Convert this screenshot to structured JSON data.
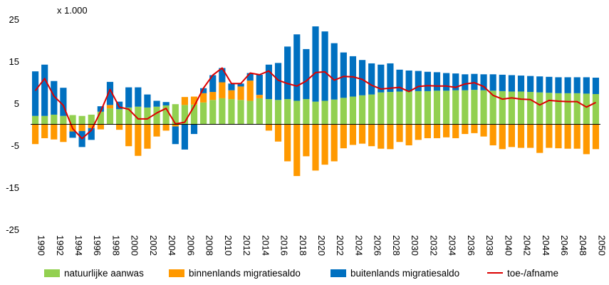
{
  "chart_data": {
    "type": "bar",
    "stacked": true,
    "unit_label": "x 1.000",
    "ylim": [
      -25,
      25
    ],
    "y_ticks": [
      "25",
      "15",
      "5",
      "-5",
      "-15",
      "-25"
    ],
    "y_tick_values": [
      25,
      15,
      5,
      -5,
      -15,
      -25
    ],
    "x_tick_labels": [
      "1990",
      "1992",
      "1994",
      "1996",
      "1998",
      "2000",
      "2002",
      "2004",
      "2006",
      "2008",
      "2010",
      "2012",
      "2014",
      "2016",
      "2018",
      "2020",
      "2022",
      "2024",
      "2026",
      "2028",
      "2030",
      "2032",
      "2034",
      "2036",
      "2038",
      "2040",
      "2042",
      "2044",
      "2046",
      "2048",
      "2050"
    ],
    "years": [
      1990,
      1991,
      1992,
      1993,
      1994,
      1995,
      1996,
      1997,
      1998,
      1999,
      2000,
      2001,
      2002,
      2003,
      2004,
      2005,
      2006,
      2007,
      2008,
      2009,
      2010,
      2011,
      2012,
      2013,
      2014,
      2015,
      2016,
      2017,
      2018,
      2019,
      2020,
      2021,
      2022,
      2023,
      2024,
      2025,
      2026,
      2027,
      2028,
      2029,
      2030,
      2031,
      2032,
      2033,
      2034,
      2035,
      2036,
      2037,
      2038,
      2039,
      2040,
      2041,
      2042,
      2043,
      2044,
      2045,
      2046,
      2047,
      2048,
      2049,
      2050
    ],
    "series": [
      {
        "name": "natuurlijke aanwas",
        "color": "#92D050",
        "kind": "bar",
        "values": [
          2.0,
          2.0,
          2.3,
          2.0,
          2.2,
          2.0,
          2.3,
          3.0,
          3.8,
          3.6,
          4.0,
          4.2,
          4.0,
          4.2,
          4.5,
          4.8,
          4.6,
          4.7,
          5.2,
          5.8,
          6.2,
          6.0,
          5.8,
          5.6,
          6.2,
          6.0,
          5.8,
          6.0,
          5.6,
          6.0,
          5.4,
          5.6,
          5.9,
          6.3,
          6.6,
          6.9,
          7.1,
          7.6,
          7.7,
          7.8,
          7.8,
          7.9,
          7.9,
          8.0,
          8.0,
          8.1,
          8.1,
          8.2,
          8.1,
          8.0,
          7.9,
          7.8,
          7.8,
          7.7,
          7.6,
          7.5,
          7.4,
          7.4,
          7.4,
          7.3,
          7.2
        ]
      },
      {
        "name": "binnenlands migratiesaldo",
        "color": "#FF9900",
        "kind": "bar",
        "values": [
          -4.7,
          -3.3,
          -3.6,
          -4.2,
          -1.7,
          -1.6,
          -0.9,
          -1.2,
          0.8,
          -1.3,
          -5.2,
          -7.5,
          -5.8,
          -2.9,
          -1.5,
          -0.5,
          1.9,
          1.9,
          2.2,
          1.9,
          3.8,
          2.1,
          3.2,
          4.8,
          0.8,
          -1.5,
          -4.1,
          -8.8,
          -12.3,
          -7.6,
          -11.0,
          -9.6,
          -8.8,
          -5.7,
          -4.9,
          -4.6,
          -5.2,
          -5.8,
          -5.9,
          -4.2,
          -5.0,
          -3.7,
          -3.3,
          -3.3,
          -3.1,
          -3.3,
          -2.3,
          -2.1,
          -2.9,
          -5.0,
          -5.9,
          -5.4,
          -5.6,
          -5.6,
          -6.8,
          -5.6,
          -5.7,
          -5.8,
          -5.8,
          -7.1,
          -5.9
        ]
      },
      {
        "name": "buitenlands migratiesaldo",
        "color": "#0070C0",
        "kind": "bar",
        "values": [
          10.6,
          12.2,
          8.0,
          6.7,
          -1.5,
          -3.8,
          -2.8,
          1.3,
          5.5,
          1.8,
          4.8,
          4.6,
          3.1,
          1.4,
          0.8,
          -4.2,
          -6.0,
          -2.3,
          1.2,
          4.0,
          3.4,
          1.6,
          0.7,
          1.8,
          4.8,
          8.2,
          8.8,
          12.5,
          15.8,
          11.9,
          17.9,
          16.5,
          13.4,
          10.8,
          9.6,
          8.4,
          7.4,
          6.6,
          6.8,
          5.2,
          5.0,
          4.8,
          4.6,
          4.4,
          4.2,
          4.0,
          3.8,
          3.8,
          3.8,
          3.9,
          3.9,
          3.9,
          3.8,
          3.8,
          3.8,
          3.8,
          3.8,
          3.8,
          3.8,
          3.9,
          3.9
        ]
      },
      {
        "name": "toe-/afname",
        "color": "#DC0000",
        "kind": "line",
        "values": [
          8.0,
          10.9,
          6.7,
          4.5,
          -1.0,
          -3.4,
          -1.4,
          3.1,
          8.3,
          4.1,
          3.6,
          1.3,
          1.3,
          2.7,
          3.8,
          0.1,
          0.5,
          4.3,
          8.6,
          11.7,
          13.4,
          9.7,
          9.7,
          12.2,
          11.8,
          12.7,
          10.5,
          9.7,
          9.1,
          10.3,
          12.3,
          12.5,
          10.5,
          11.4,
          11.3,
          10.7,
          9.3,
          8.4,
          8.6,
          8.8,
          7.8,
          9.0,
          9.2,
          9.1,
          9.1,
          8.8,
          9.6,
          9.9,
          9.0,
          6.9,
          6.0,
          6.3,
          6.0,
          5.9,
          4.6,
          5.7,
          5.5,
          5.4,
          5.4,
          4.1,
          5.2
        ]
      }
    ]
  },
  "legend": {
    "natural": "natuurlijke aanwas",
    "domestic": "binnenlands migratiesaldo",
    "foreign": "buitenlands migratiesaldo",
    "total": "toe-/afname"
  }
}
